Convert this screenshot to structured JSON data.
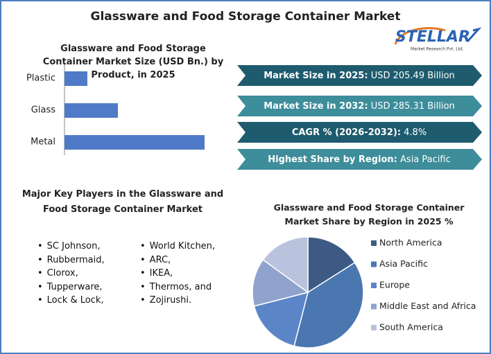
{
  "title": "Glassware and Food Storage Container Market",
  "logo": {
    "name": "STELLAR",
    "tagline": "Market Research Pvt. Ltd."
  },
  "chart_data": [
    {
      "type": "bar",
      "orientation": "horizontal",
      "title": "Glassware and Food Storage Container Market Size (USD Bn.) by Product, in 2025",
      "categories": [
        "Plastic",
        "Glass",
        "Metal"
      ],
      "values": [
        21.7,
        50.7,
        133.0
      ],
      "color": "#4f7ac7"
    },
    {
      "type": "pie",
      "title": "Glassware and Food Storage Container Market Share by Region in 2025 %",
      "categories": [
        "North America",
        "Asia Pacific",
        "Europe",
        "Middle East and Africa",
        "South America"
      ],
      "values": [
        16,
        38,
        17,
        14,
        15
      ],
      "colors": [
        "#3d5a85",
        "#4a77b0",
        "#5a86c8",
        "#8fa3cc",
        "#b9c3de"
      ]
    }
  ],
  "highlights": [
    {
      "label": "Market Size in 2025:",
      "value": "USD 205.49 Billion",
      "color": "#1e5b6e"
    },
    {
      "label": "Market Size in 2032:",
      "value": "USD 285.31 Billion",
      "color": "#3d8d9a"
    },
    {
      "label": "CAGR % (2026-2032):",
      "value": "4.8%",
      "color": "#1e5b6e"
    },
    {
      "label": "Highest Share by Region:",
      "value": "Asia Pacific",
      "color": "#3d8d9a"
    }
  ],
  "key_players": {
    "title": "Major Key Players in the Glassware and Food Storage Container Market",
    "columns": [
      [
        "SC Johnson,",
        "Rubbermaid,",
        "Clorox,",
        "Tupperware,",
        "Lock & Lock,"
      ],
      [
        "World Kitchen,",
        "ARC,",
        "IKEA,",
        "Thermos, and",
        "Zojirushi."
      ]
    ]
  }
}
